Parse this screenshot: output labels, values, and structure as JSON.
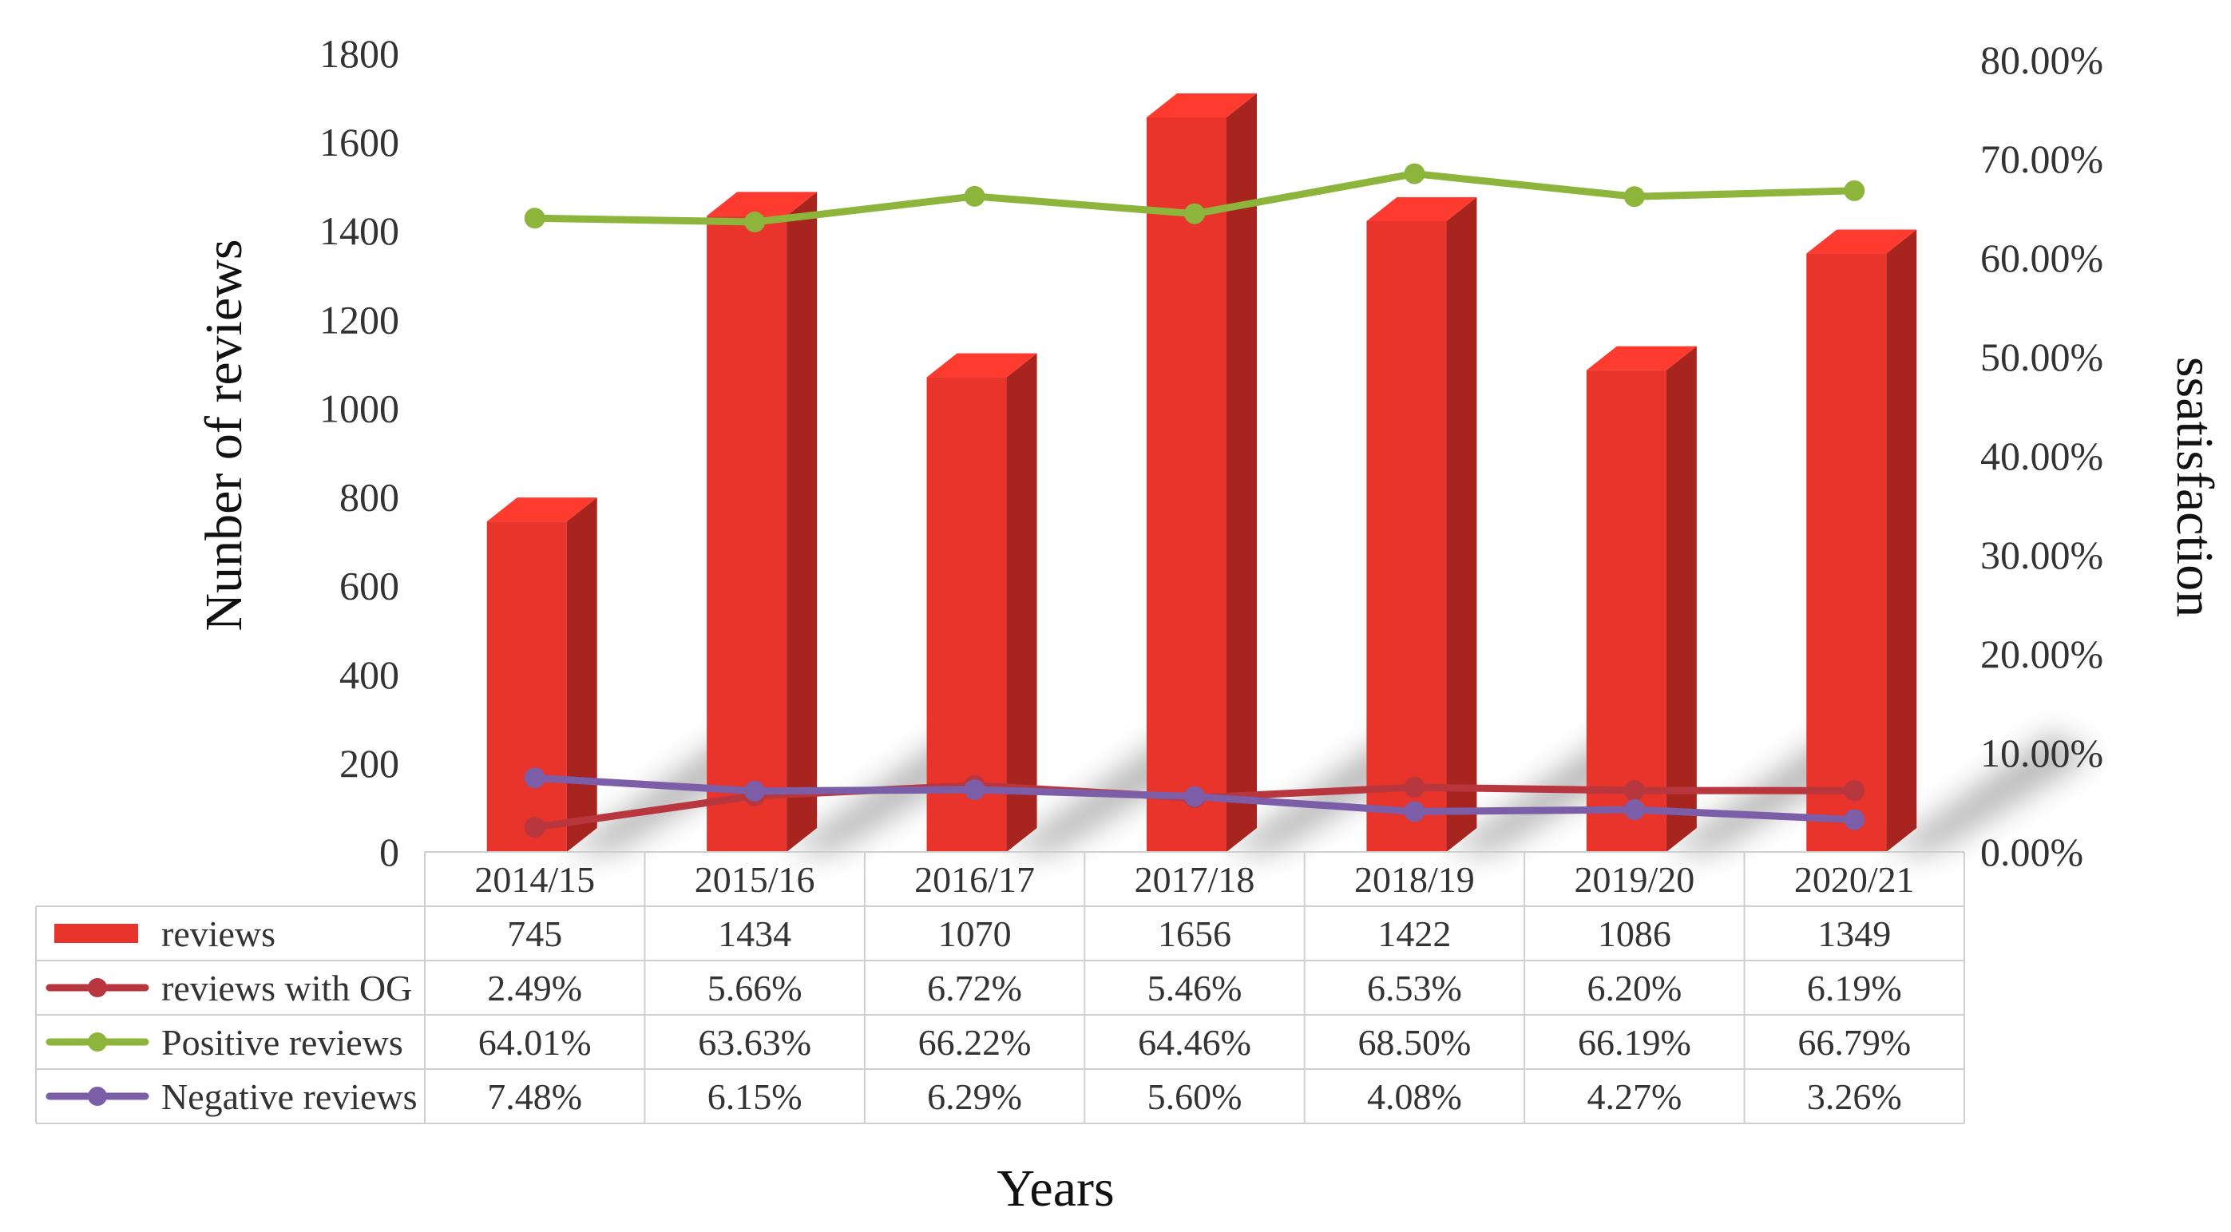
{
  "chart_data": {
    "type": "bar",
    "categories": [
      "2014/15",
      "2015/16",
      "2016/17",
      "2017/18",
      "2018/19",
      "2019/20",
      "2020/21"
    ],
    "xlabel": "Years",
    "ylabel": "Nunber of reviews",
    "y2label": "ssatisfaction",
    "ylim": [
      0,
      1800
    ],
    "y2lim": [
      0,
      80
    ],
    "yticks": [
      "0",
      "200",
      "400",
      "600",
      "800",
      "1000",
      "1200",
      "1400",
      "1600",
      "1800"
    ],
    "y2ticks": [
      "0.00%",
      "10.00%",
      "20.00%",
      "30.00%",
      "40.00%",
      "50.00%",
      "60.00%",
      "70.00%",
      "80.00%"
    ],
    "legend_position": "data table below chart",
    "series": [
      {
        "name": "reviews",
        "kind": "bar",
        "axis": "left",
        "color": "#e8342a",
        "values": [
          745,
          1434,
          1070,
          1656,
          1422,
          1086,
          1349
        ],
        "labels": [
          "745",
          "1434",
          "1070",
          "1656",
          "1422",
          "1086",
          "1349"
        ]
      },
      {
        "name": "reviews with OG",
        "kind": "line",
        "axis": "right",
        "color": "#b8373f",
        "values": [
          2.49,
          5.66,
          6.72,
          5.46,
          6.53,
          6.2,
          6.19
        ],
        "labels": [
          "2.49%",
          "5.66%",
          "6.72%",
          "5.46%",
          "6.53%",
          "6.20%",
          "6.19%"
        ]
      },
      {
        "name": "Positive reviews",
        "kind": "line",
        "axis": "right",
        "color": "#8db53c",
        "values": [
          64.01,
          63.63,
          66.22,
          64.46,
          68.5,
          66.19,
          66.79
        ],
        "labels": [
          "64.01%",
          "63.63%",
          "66.22%",
          "64.46%",
          "68.50%",
          "66.19%",
          "66.79%"
        ]
      },
      {
        "name": "Negative reviews",
        "kind": "line",
        "axis": "right",
        "color": "#7b5ea7",
        "values": [
          7.48,
          6.15,
          6.29,
          5.6,
          4.08,
          4.27,
          3.26
        ],
        "labels": [
          "7.48%",
          "6.15%",
          "6.29%",
          "5.60%",
          "4.08%",
          "4.27%",
          "3.26%"
        ]
      }
    ]
  }
}
